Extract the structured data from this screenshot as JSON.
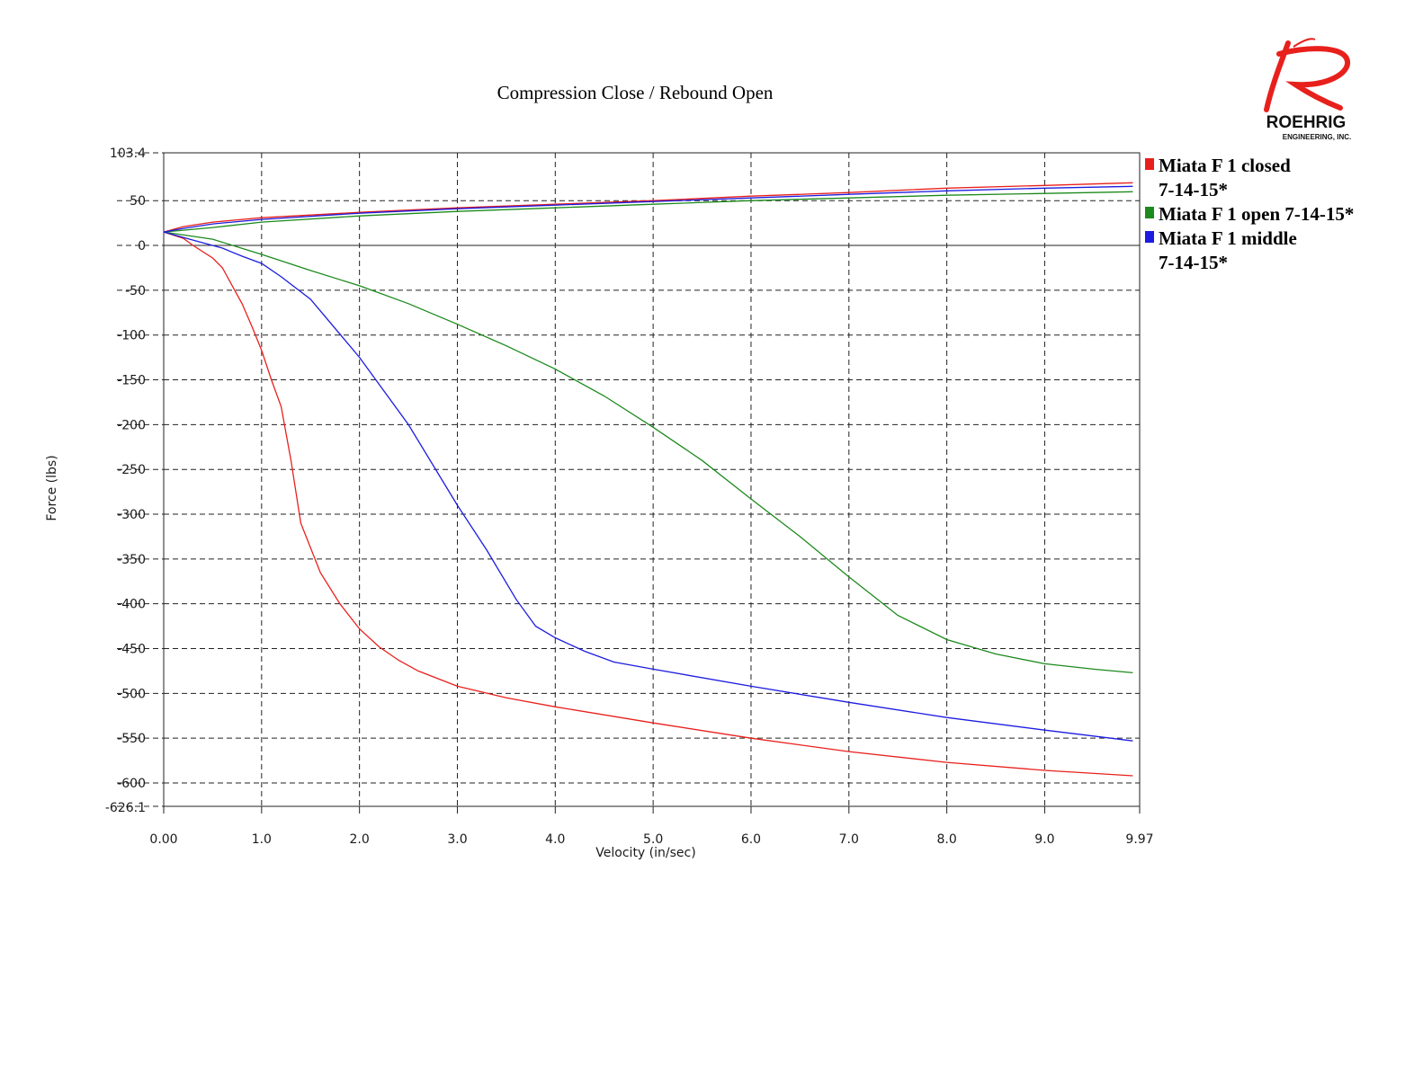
{
  "chart_data": {
    "type": "line",
    "title": "Compression Close / Rebound Open",
    "xlabel": "Velocity (in/sec)",
    "ylabel": "Force (lbs)",
    "xlim": [
      0.0,
      9.97
    ],
    "ylim": [
      -626.1,
      103.4
    ],
    "x_ticks": [
      {
        "value": 0.0,
        "label": "0.00"
      },
      {
        "value": 1.0,
        "label": "1.0"
      },
      {
        "value": 2.0,
        "label": "2.0"
      },
      {
        "value": 3.0,
        "label": "3.0"
      },
      {
        "value": 4.0,
        "label": "4.0"
      },
      {
        "value": 5.0,
        "label": "5.0"
      },
      {
        "value": 6.0,
        "label": "6.0"
      },
      {
        "value": 7.0,
        "label": "7.0"
      },
      {
        "value": 8.0,
        "label": "8.0"
      },
      {
        "value": 9.0,
        "label": "9.0"
      },
      {
        "value": 9.97,
        "label": "9.97"
      }
    ],
    "y_ticks": [
      {
        "value": 103.4,
        "label": "103.4"
      },
      {
        "value": 50,
        "label": "50"
      },
      {
        "value": 0,
        "label": "0"
      },
      {
        "value": -50,
        "label": "-50"
      },
      {
        "value": -100,
        "label": "-100"
      },
      {
        "value": -150,
        "label": "-150"
      },
      {
        "value": -200,
        "label": "-200"
      },
      {
        "value": -250,
        "label": "-250"
      },
      {
        "value": -300,
        "label": "-300"
      },
      {
        "value": -350,
        "label": "-350"
      },
      {
        "value": -400,
        "label": "-400"
      },
      {
        "value": -450,
        "label": "-450"
      },
      {
        "value": -500,
        "label": "-500"
      },
      {
        "value": -550,
        "label": "-550"
      },
      {
        "value": -600,
        "label": "-600"
      },
      {
        "value": -626.1,
        "label": "-626.1"
      }
    ],
    "grid": true,
    "legend_position": "right",
    "series": [
      {
        "name": "Miata F 1 closed 7-14-15*",
        "legend_lines": [
          "Miata F 1 closed",
          "7-14-15*"
        ],
        "color": "#e8201c",
        "rebound": [
          [
            0.0,
            15
          ],
          [
            0.2,
            21
          ],
          [
            0.5,
            26
          ],
          [
            1.0,
            31
          ],
          [
            1.5,
            34
          ],
          [
            2.0,
            37
          ],
          [
            3.0,
            42
          ],
          [
            4.0,
            46
          ],
          [
            5.0,
            50
          ],
          [
            6.0,
            55
          ],
          [
            7.0,
            59
          ],
          [
            8.0,
            64
          ],
          [
            9.0,
            67
          ],
          [
            9.9,
            70
          ]
        ],
        "compression": [
          [
            0.0,
            15
          ],
          [
            0.2,
            8
          ],
          [
            0.3,
            0
          ],
          [
            0.5,
            -14
          ],
          [
            0.6,
            -25
          ],
          [
            0.7,
            -45
          ],
          [
            0.8,
            -65
          ],
          [
            0.9,
            -90
          ],
          [
            1.0,
            -117
          ],
          [
            1.1,
            -150
          ],
          [
            1.2,
            -180
          ],
          [
            1.3,
            -240
          ],
          [
            1.4,
            -310
          ],
          [
            1.6,
            -365
          ],
          [
            1.8,
            -400
          ],
          [
            2.0,
            -428
          ],
          [
            2.2,
            -448
          ],
          [
            2.4,
            -463
          ],
          [
            2.6,
            -475
          ],
          [
            3.0,
            -492
          ],
          [
            3.5,
            -505
          ],
          [
            4.0,
            -515
          ],
          [
            5.0,
            -533
          ],
          [
            6.0,
            -550
          ],
          [
            7.0,
            -565
          ],
          [
            8.0,
            -577
          ],
          [
            9.0,
            -586
          ],
          [
            9.9,
            -592
          ]
        ]
      },
      {
        "name": "Miata F 1 open 7-14-15*",
        "legend_lines": [
          "Miata F 1 open 7-14-15*"
        ],
        "color": "#1c8a1c",
        "rebound": [
          [
            0.0,
            15
          ],
          [
            0.5,
            20
          ],
          [
            1.0,
            26
          ],
          [
            2.0,
            33
          ],
          [
            3.0,
            38
          ],
          [
            4.0,
            42
          ],
          [
            5.0,
            46
          ],
          [
            6.0,
            50
          ],
          [
            7.0,
            53
          ],
          [
            8.0,
            56
          ],
          [
            9.0,
            58
          ],
          [
            9.9,
            60
          ]
        ],
        "compression": [
          [
            0.0,
            15
          ],
          [
            0.5,
            7
          ],
          [
            1.0,
            -10
          ],
          [
            1.5,
            -28
          ],
          [
            2.0,
            -45
          ],
          [
            2.5,
            -65
          ],
          [
            3.0,
            -88
          ],
          [
            3.5,
            -112
          ],
          [
            4.0,
            -138
          ],
          [
            4.5,
            -168
          ],
          [
            5.0,
            -203
          ],
          [
            5.5,
            -240
          ],
          [
            6.0,
            -283
          ],
          [
            6.5,
            -325
          ],
          [
            7.0,
            -370
          ],
          [
            7.5,
            -413
          ],
          [
            8.0,
            -440
          ],
          [
            8.5,
            -456
          ],
          [
            9.0,
            -467
          ],
          [
            9.5,
            -473
          ],
          [
            9.9,
            -477
          ]
        ]
      },
      {
        "name": "Miata F 1 middle 7-14-15*",
        "legend_lines": [
          "Miata F 1 middle",
          "7-14-15*"
        ],
        "color": "#1c1ce0",
        "rebound": [
          [
            0.0,
            15
          ],
          [
            0.2,
            19
          ],
          [
            0.5,
            24
          ],
          [
            1.0,
            29
          ],
          [
            2.0,
            36
          ],
          [
            3.0,
            41
          ],
          [
            4.0,
            45
          ],
          [
            5.0,
            49
          ],
          [
            6.0,
            53
          ],
          [
            7.0,
            57
          ],
          [
            8.0,
            61
          ],
          [
            9.0,
            64
          ],
          [
            9.9,
            66
          ]
        ],
        "compression": [
          [
            0.0,
            15
          ],
          [
            0.3,
            6
          ],
          [
            0.6,
            -3
          ],
          [
            0.8,
            -12
          ],
          [
            1.0,
            -20
          ],
          [
            1.2,
            -35
          ],
          [
            1.5,
            -60
          ],
          [
            2.0,
            -125
          ],
          [
            2.5,
            -200
          ],
          [
            3.0,
            -290
          ],
          [
            3.3,
            -340
          ],
          [
            3.6,
            -395
          ],
          [
            3.8,
            -425
          ],
          [
            4.0,
            -438
          ],
          [
            4.3,
            -453
          ],
          [
            4.6,
            -465
          ],
          [
            5.0,
            -473
          ],
          [
            6.0,
            -492
          ],
          [
            7.0,
            -510
          ],
          [
            8.0,
            -527
          ],
          [
            9.0,
            -541
          ],
          [
            9.9,
            -553
          ]
        ]
      }
    ]
  },
  "logo": {
    "name": "ROEHRIG",
    "subtitle": "ENGINEERING, INC."
  }
}
